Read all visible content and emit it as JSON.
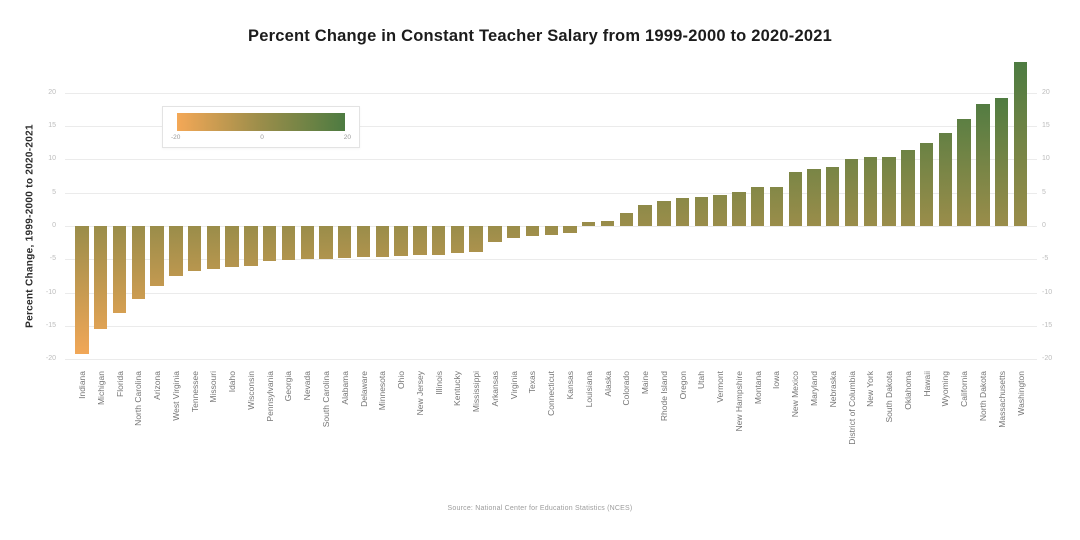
{
  "title": "Percent Change in Constant Teacher Salary from 1999-2000 to 2020-2021",
  "y_axis": {
    "label": "Percent Change, 1999-2000 to 2020-2021",
    "ticks": [
      20,
      15,
      10,
      5,
      0,
      -5,
      -10,
      -15,
      -20
    ]
  },
  "legend": {
    "min_label": "-20",
    "mid_label": "0",
    "max_label": "20"
  },
  "footer": "Source: National Center for Education Statistics (NCES)",
  "colors": {
    "negative": "#f4a857",
    "zero": "#9a8d4a",
    "positive": "#4d7b41",
    "gridline": "#ebebeb"
  },
  "chart_data": {
    "type": "bar",
    "title": "Percent Change in Constant Teacher Salary from 1999-2000 to 2020-2021",
    "xlabel": "",
    "ylabel": "Percent Change, 1999-2000 to 2020-2021",
    "ylim": [
      -20,
      25
    ],
    "grid": true,
    "legend_position": "top-left",
    "colorscale": [
      {
        "value": -20,
        "color": "#f4a857"
      },
      {
        "value": 0,
        "color": "#9a8d4a"
      },
      {
        "value": 20,
        "color": "#4d7b41"
      }
    ],
    "categories": [
      "Indiana",
      "Michigan",
      "Florida",
      "North Carolina",
      "Arizona",
      "West Virginia",
      "Tennessee",
      "Missouri",
      "Idaho",
      "Wisconsin",
      "Pennsylvania",
      "Georgia",
      "Nevada",
      "South Carolina",
      "Alabama",
      "Delaware",
      "Minnesota",
      "Ohio",
      "New Jersey",
      "Illinois",
      "Kentucky",
      "Mississippi",
      "Arkansas",
      "Virginia",
      "Texas",
      "Connecticut",
      "Kansas",
      "Louisiana",
      "Alaska",
      "Colorado",
      "Maine",
      "Rhode Island",
      "Oregon",
      "Utah",
      "Vermont",
      "New Hampshire",
      "Montana",
      "Iowa",
      "New Mexico",
      "Maryland",
      "Nebraska",
      "District of Columbia",
      "New York",
      "South Dakota",
      "Oklahoma",
      "Hawaii",
      "Wyoming",
      "California",
      "North Dakota",
      "Massachusetts",
      "Washington"
    ],
    "values": [
      -19.3,
      -15.4,
      -13.0,
      -11.0,
      -9.0,
      -7.5,
      -6.7,
      -6.4,
      -6.1,
      -6.0,
      -5.3,
      -5.1,
      -5.0,
      -4.9,
      -4.8,
      -4.7,
      -4.6,
      -4.5,
      -4.4,
      -4.3,
      -4.1,
      -3.9,
      -2.4,
      -1.8,
      -1.5,
      -1.3,
      -1.0,
      0.6,
      0.7,
      1.9,
      3.1,
      3.7,
      4.2,
      4.4,
      4.6,
      5.1,
      5.8,
      5.9,
      8.1,
      8.5,
      8.9,
      10.0,
      10.3,
      10.4,
      11.4,
      12.5,
      13.9,
      16.0,
      18.4,
      19.2,
      24.6
    ]
  }
}
